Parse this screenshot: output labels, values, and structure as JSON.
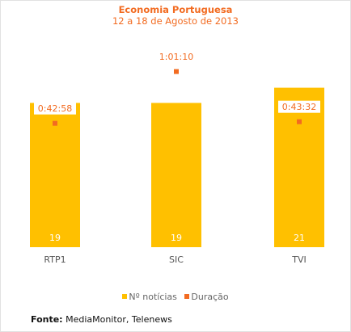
{
  "chart_data": {
    "type": "bar",
    "title": "Economia Portuguesa",
    "subtitle": "12 a 18 de Agosto de 2013",
    "categories": [
      "RTP1",
      "SIC",
      "TVI"
    ],
    "series": [
      {
        "name": "Nº notícias",
        "type": "bar",
        "values": [
          19,
          19,
          21
        ]
      },
      {
        "name": "Duração",
        "type": "scatter",
        "values_seconds": [
          2578,
          3670,
          2612
        ],
        "labels": [
          "0:42:58",
          "1:01:10",
          "0:43:32"
        ]
      }
    ],
    "legend_position": "bottom",
    "grid": false,
    "colors": {
      "bar": "#ffc000",
      "point": "#f26b21",
      "bar_label": "#ffffff",
      "category_label": "#555555"
    }
  },
  "source": {
    "label": "Fonte:",
    "text": " MediaMonitor, Telenews"
  }
}
